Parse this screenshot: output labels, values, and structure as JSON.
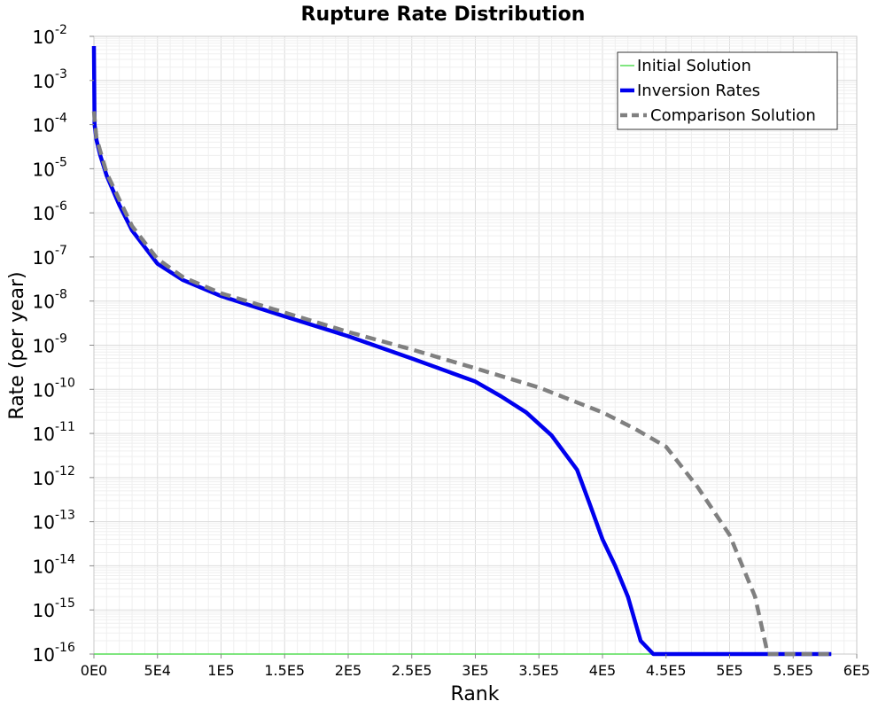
{
  "chart_data": {
    "type": "line",
    "title": "Rupture Rate Distribution",
    "xlabel": "Rank",
    "ylabel": "Rate (per year)",
    "xlim": [
      0,
      600000
    ],
    "ylim": [
      1e-16,
      0.01
    ],
    "yscale": "log",
    "grid": true,
    "legend_position": "top-right",
    "x_ticks": [
      {
        "value": 0,
        "label": "0E0"
      },
      {
        "value": 50000,
        "label": "5E4"
      },
      {
        "value": 100000,
        "label": "1E5"
      },
      {
        "value": 150000,
        "label": "1.5E5"
      },
      {
        "value": 200000,
        "label": "2E5"
      },
      {
        "value": 250000,
        "label": "2.5E5"
      },
      {
        "value": 300000,
        "label": "3E5"
      },
      {
        "value": 350000,
        "label": "3.5E5"
      },
      {
        "value": 400000,
        "label": "4E5"
      },
      {
        "value": 450000,
        "label": "4.5E5"
      },
      {
        "value": 500000,
        "label": "5E5"
      },
      {
        "value": 550000,
        "label": "5.5E5"
      },
      {
        "value": 600000,
        "label": "6E5"
      }
    ],
    "y_ticks": [
      {
        "value": 0.01,
        "base": "10",
        "exp": "-2"
      },
      {
        "value": 0.001,
        "base": "10",
        "exp": "-3"
      },
      {
        "value": 0.0001,
        "base": "10",
        "exp": "-4"
      },
      {
        "value": 1e-05,
        "base": "10",
        "exp": "-5"
      },
      {
        "value": 1e-06,
        "base": "10",
        "exp": "-6"
      },
      {
        "value": 1e-07,
        "base": "10",
        "exp": "-7"
      },
      {
        "value": 1e-08,
        "base": "10",
        "exp": "-8"
      },
      {
        "value": 1e-09,
        "base": "10",
        "exp": "-9"
      },
      {
        "value": 1e-10,
        "base": "10",
        "exp": "-10"
      },
      {
        "value": 1e-11,
        "base": "10",
        "exp": "-11"
      },
      {
        "value": 1e-12,
        "base": "10",
        "exp": "-12"
      },
      {
        "value": 1e-13,
        "base": "10",
        "exp": "-13"
      },
      {
        "value": 1e-14,
        "base": "10",
        "exp": "-14"
      },
      {
        "value": 1e-15,
        "base": "10",
        "exp": "-15"
      },
      {
        "value": 1e-16,
        "base": "10",
        "exp": "-16"
      }
    ],
    "series": [
      {
        "name": "Initial Solution",
        "color": "#55dd55",
        "style": "solid-thin",
        "x": [
          0,
          580000
        ],
        "y": [
          1e-16,
          1e-16
        ]
      },
      {
        "name": "Inversion Rates",
        "color": "#0000ee",
        "style": "solid-thick",
        "x": [
          0,
          500,
          2000,
          5000,
          10000,
          20000,
          30000,
          50000,
          70000,
          100000,
          150000,
          200000,
          250000,
          300000,
          320000,
          340000,
          360000,
          380000,
          390000,
          400000,
          410000,
          420000,
          430000,
          440000,
          445000,
          450000,
          500000,
          580000
        ],
        "y": [
          0.006,
          0.0001,
          4.5e-05,
          2e-05,
          7e-06,
          1.5e-06,
          4e-07,
          7e-08,
          3e-08,
          1.3e-08,
          4.5e-09,
          1.6e-09,
          5e-10,
          1.5e-10,
          7e-11,
          3e-11,
          9e-12,
          1.5e-12,
          2.5e-13,
          4e-14,
          1e-14,
          2e-15,
          2e-16,
          1e-16,
          1e-16,
          1e-16,
          1e-16,
          1e-16
        ]
      },
      {
        "name": "Comparison Solution",
        "color": "#808080",
        "style": "dashed",
        "x": [
          0,
          2000,
          5000,
          10000,
          20000,
          30000,
          50000,
          70000,
          100000,
          150000,
          200000,
          250000,
          300000,
          350000,
          400000,
          425000,
          450000,
          475000,
          500000,
          510000,
          520000,
          530000,
          535000,
          580000
        ],
        "y": [
          0.0002,
          5e-05,
          2.5e-05,
          8e-06,
          2e-06,
          5e-07,
          9e-08,
          3.5e-08,
          1.5e-08,
          5.5e-09,
          2e-09,
          8e-10,
          3e-10,
          1.1e-10,
          3e-11,
          1.3e-11,
          5e-12,
          6e-13,
          5e-14,
          1e-14,
          2e-15,
          1e-16,
          1e-16,
          1e-16
        ]
      }
    ]
  }
}
